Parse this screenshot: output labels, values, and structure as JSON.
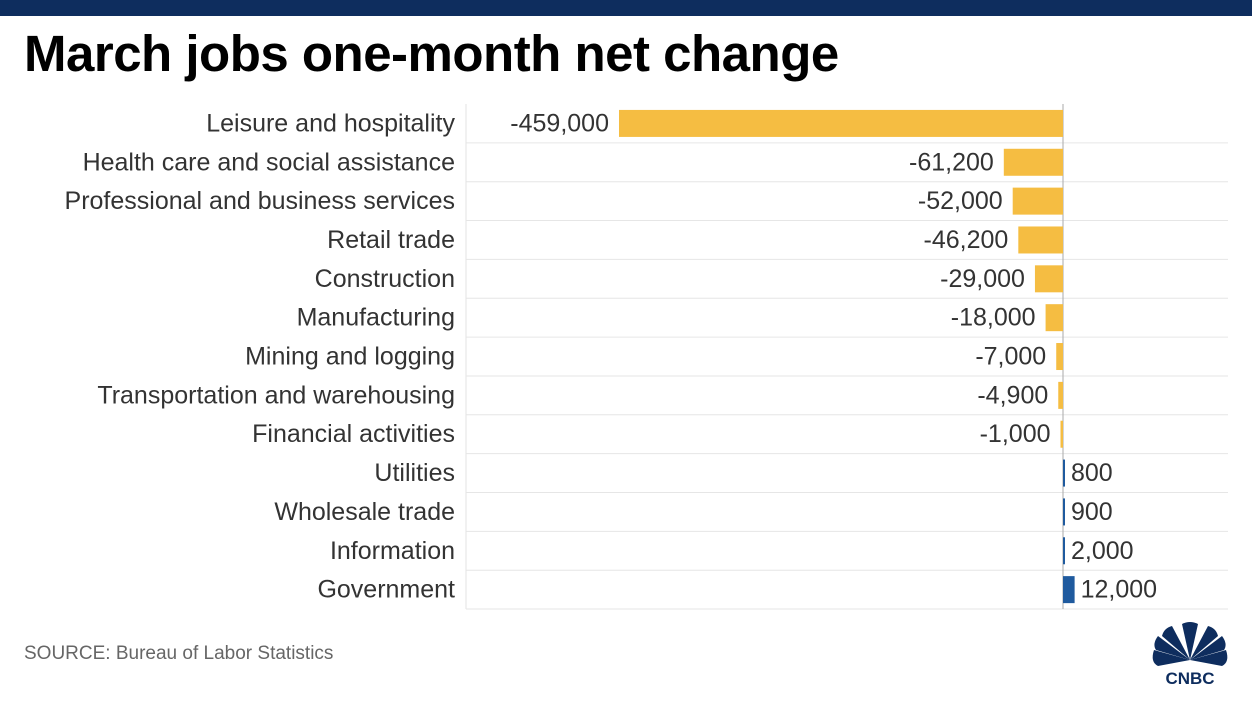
{
  "title": "March jobs one-month net change",
  "source": "SOURCE: Bureau of Labor Statistics",
  "brand": {
    "logo_text": "CNBC",
    "logo_icon": "peacock-icon"
  },
  "colors": {
    "negative": "#f5bd42",
    "positive": "#1f5a9e",
    "top_bar": "#0e2d5e",
    "zero_line": "#aaaaaa"
  },
  "chart_data": {
    "type": "bar",
    "orientation": "horizontal",
    "title": "March jobs one-month net change",
    "categories": [
      "Leisure and hospitality",
      "Health care and social assistance",
      "Professional and business services",
      "Retail trade",
      "Construction",
      "Manufacturing",
      "Mining and logging",
      "Transportation and warehousing",
      "Financial activities",
      "Utilities",
      "Wholesale trade",
      "Information",
      "Government"
    ],
    "values": [
      -459000,
      -61200,
      -52000,
      -46200,
      -29000,
      -18000,
      -7000,
      -4900,
      -1000,
      800,
      900,
      2000,
      12000
    ],
    "labels": [
      "-459,000",
      "-61,200",
      "-52,000",
      "-46,200",
      "-29,000",
      "-18,000",
      "-7,000",
      "-4,900",
      "-1,000",
      "800",
      "900",
      "2,000",
      "12,000"
    ],
    "xlim": [
      -459000,
      170000
    ],
    "grid": true,
    "legend": "none"
  }
}
